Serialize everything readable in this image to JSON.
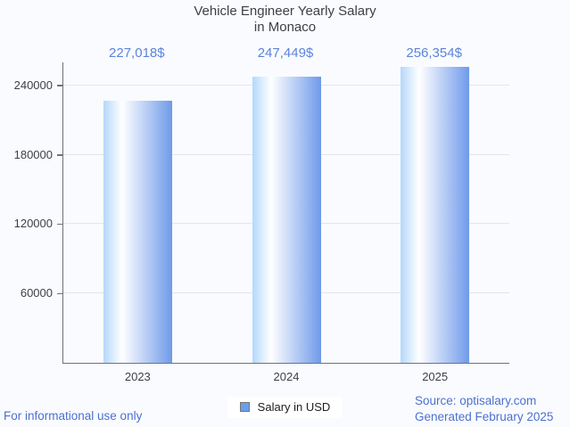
{
  "title": {
    "line1": "Vehicle Engineer Yearly Salary",
    "line2": "in Monaco"
  },
  "chart_data": {
    "type": "bar",
    "title": "Vehicle Engineer Yearly Salary in Monaco",
    "categories": [
      "2023",
      "2024",
      "2025"
    ],
    "series": [
      {
        "name": "Salary in USD",
        "values": [
          227018,
          247449,
          256354
        ]
      }
    ],
    "value_labels": [
      "227,018$",
      "247,449$",
      "256,354$"
    ],
    "xlabel": "",
    "ylabel": "",
    "ylim": [
      0,
      260000
    ],
    "yticks": [
      60000,
      120000,
      180000,
      240000
    ],
    "grid": true,
    "legend_position": "bottom-center"
  },
  "legend": {
    "label": "Salary in USD"
  },
  "footer": {
    "left": "For informational use only",
    "source": "Source: optisalary.com",
    "generated": "Generated February 2025"
  },
  "theme": {
    "background": "#fafbfe",
    "text": "#3e4144",
    "axis_line": "#6f7276",
    "gridline": "#e4e5e8",
    "accent_text": "#5b84da",
    "footer_text": "#4c70cf",
    "bar_gradient_left": "#b4d8fb",
    "bar_gradient_mid": "#ffffff",
    "bar_gradient_right": "#6f9aea",
    "legend_swatch": "#6d9eeb",
    "legend_swatch_border": "#757575",
    "legend_background": "#ffffff"
  }
}
